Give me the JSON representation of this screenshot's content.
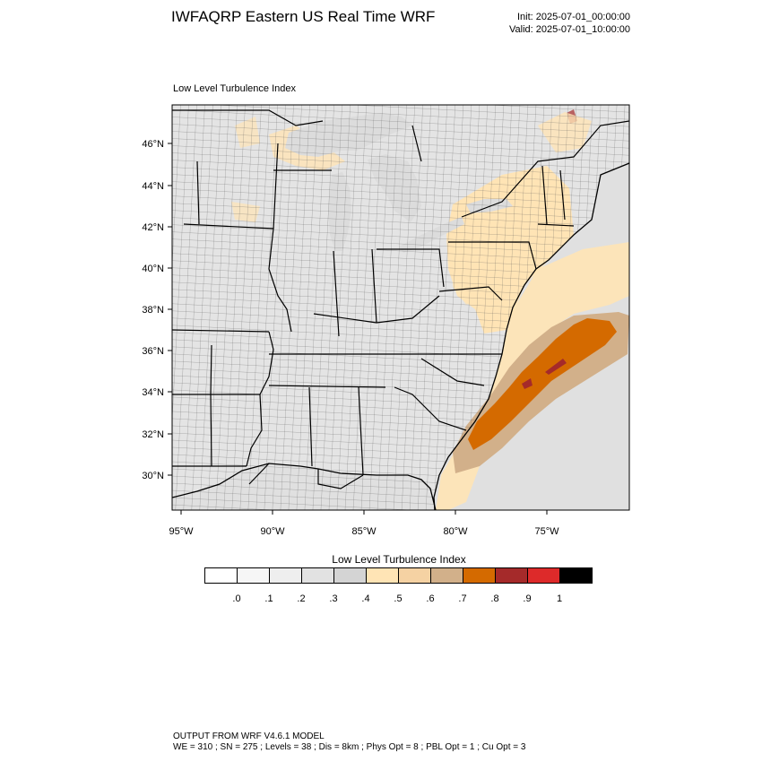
{
  "header": {
    "title": "IWFAQRP Eastern US Real Time WRF",
    "init": "Init: 2025-07-01_00:00:00",
    "valid": "Valid: 2025-07-01_10:00:00"
  },
  "plot": {
    "label": "Low Level Turbulence Index",
    "lat_ticks": [
      "46°N",
      "44°N",
      "42°N",
      "40°N",
      "38°N",
      "36°N",
      "34°N",
      "32°N",
      "30°N"
    ],
    "lon_ticks": [
      "95°W",
      "90°W",
      "85°W",
      "80°W",
      "75°W"
    ]
  },
  "colorbar": {
    "title": "Low Level Turbulence Index",
    "colors": [
      "#ffffff",
      "#f6f6f6",
      "#eeeeee",
      "#e2e2e2",
      "#d4d4d4",
      "#ffe4b5",
      "#f5d2a3",
      "#d2b08a",
      "#d46a00",
      "#a52a2a",
      "#dd2a2a",
      "#000000"
    ],
    "labels": [
      ".0",
      ".1",
      ".2",
      ".3",
      ".4",
      ".5",
      ".6",
      ".7",
      ".8",
      ".9",
      "1"
    ]
  },
  "footer": {
    "line1": "OUTPUT FROM WRF V4.6.1 MODEL",
    "line2": "WE = 310 ; SN = 275 ; Levels = 38 ; Dis = 8km ; Phys Opt = 8 ; PBL Opt = 1 ; Cu Opt = 3"
  },
  "colors": {
    "land": "#e4e4e4",
    "ocean": "#e0e0e0",
    "lake": "#dcdcdc",
    "light_orange": "#ffe4b5",
    "tan": "#d2b08a",
    "dark_orange": "#d46a00",
    "red_brown": "#a52a2a"
  }
}
